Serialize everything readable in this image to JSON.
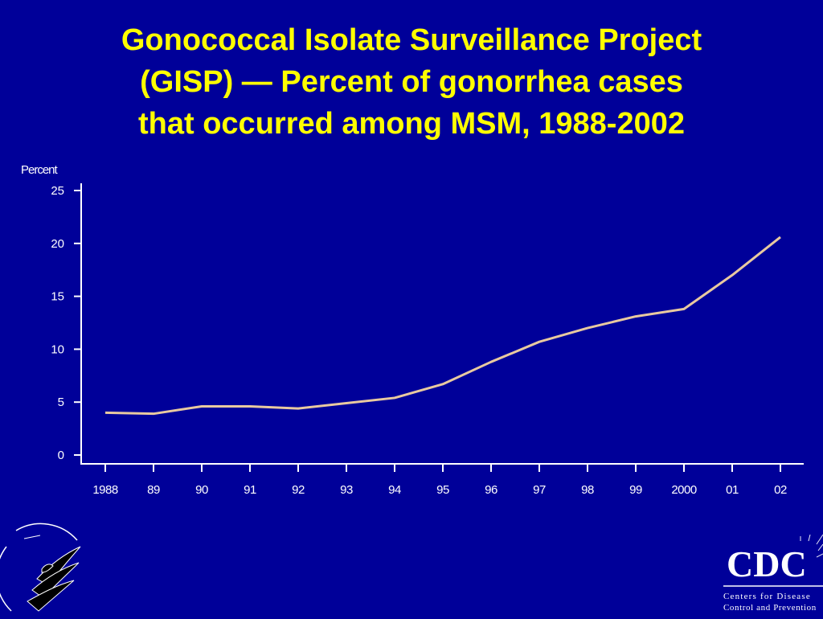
{
  "title_lines": [
    "Gonococcal Isolate Surveillance Project",
    "(GISP)  — Percent of gonorrhea cases",
    "that occurred among MSM, 1988-2002"
  ],
  "chart_data": {
    "type": "line",
    "title": "Gonococcal Isolate Surveillance Project (GISP)  — Percent of gonorrhea cases that occurred among MSM, 1988-2002",
    "xlabel": "",
    "ylabel": "Percent",
    "categories": [
      "1988",
      "89",
      "90",
      "91",
      "92",
      "93",
      "94",
      "95",
      "96",
      "97",
      "98",
      "99",
      "2000",
      "01",
      "02"
    ],
    "y_ticks": [
      0,
      5,
      10,
      15,
      20,
      25
    ],
    "ylim": [
      0,
      25
    ],
    "grid": false,
    "series": [
      {
        "values": [
          4.0,
          3.9,
          4.6,
          4.6,
          4.4,
          4.9,
          5.4,
          6.7,
          8.8,
          10.7,
          12.0,
          13.1,
          13.8,
          17.0,
          20.6
        ],
        "color": "#e8c9a0"
      }
    ]
  },
  "logos": {
    "left": "hhs-eagle-seal-icon",
    "right": "cdc-logo-icon",
    "cdc_text": "CDC",
    "cdc_tagline_1": "Centers for Disease",
    "cdc_tagline_2": "Control and Prevention"
  },
  "colors": {
    "background": "#000099",
    "title": "#ffff00",
    "axis": "#ffffff",
    "line": "#e8c9a0"
  }
}
